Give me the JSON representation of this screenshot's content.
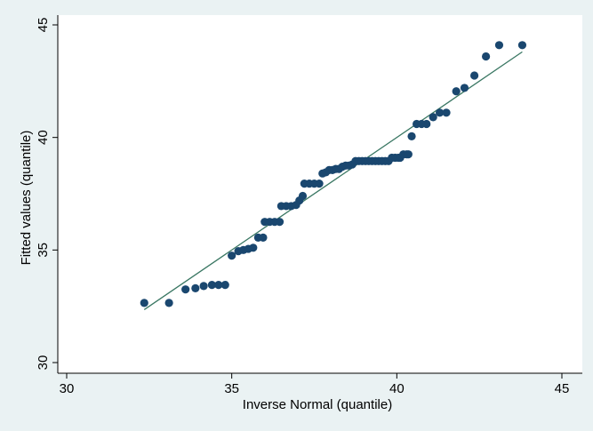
{
  "chart_data": {
    "type": "scatter",
    "title": "",
    "xlabel": "Inverse Normal (quantile)",
    "ylabel": "Fitted values (quantile)",
    "xlim": [
      30,
      45
    ],
    "ylim": [
      30,
      45
    ],
    "xticks": [
      30,
      35,
      40,
      45
    ],
    "yticks": [
      30,
      35,
      40,
      45
    ],
    "grid": false,
    "legend": "none",
    "colors": {
      "outer_background": "#eaf2f3",
      "plot_background": "#ffffff",
      "marker": "#1a476f",
      "reference_line": "#3a7763",
      "axis": "#000000"
    },
    "series": [
      {
        "type": "scatter",
        "points": [
          [
            32.35,
            32.65
          ],
          [
            33.1,
            32.65
          ],
          [
            33.6,
            33.25
          ],
          [
            33.9,
            33.3
          ],
          [
            34.15,
            33.4
          ],
          [
            34.4,
            33.45
          ],
          [
            34.6,
            33.45
          ],
          [
            34.8,
            33.45
          ],
          [
            35.0,
            34.75
          ],
          [
            35.2,
            34.95
          ],
          [
            35.35,
            35.0
          ],
          [
            35.5,
            35.05
          ],
          [
            35.65,
            35.1
          ],
          [
            35.8,
            35.55
          ],
          [
            35.95,
            35.55
          ],
          [
            36.0,
            36.25
          ],
          [
            36.15,
            36.25
          ],
          [
            36.3,
            36.25
          ],
          [
            36.45,
            36.25
          ],
          [
            36.5,
            36.95
          ],
          [
            36.65,
            36.95
          ],
          [
            36.8,
            36.95
          ],
          [
            36.95,
            37.0
          ],
          [
            37.05,
            37.2
          ],
          [
            37.15,
            37.4
          ],
          [
            37.2,
            37.95
          ],
          [
            37.35,
            37.95
          ],
          [
            37.5,
            37.95
          ],
          [
            37.65,
            37.95
          ],
          [
            37.75,
            38.4
          ],
          [
            37.85,
            38.45
          ],
          [
            37.95,
            38.55
          ],
          [
            38.05,
            38.55
          ],
          [
            38.15,
            38.6
          ],
          [
            38.25,
            38.6
          ],
          [
            38.35,
            38.7
          ],
          [
            38.45,
            38.75
          ],
          [
            38.55,
            38.75
          ],
          [
            38.65,
            38.8
          ],
          [
            38.75,
            38.95
          ],
          [
            38.85,
            38.95
          ],
          [
            38.95,
            38.95
          ],
          [
            39.05,
            38.95
          ],
          [
            39.15,
            38.95
          ],
          [
            39.25,
            38.95
          ],
          [
            39.35,
            38.95
          ],
          [
            39.45,
            38.95
          ],
          [
            39.55,
            38.95
          ],
          [
            39.65,
            38.95
          ],
          [
            39.75,
            38.95
          ],
          [
            39.85,
            39.1
          ],
          [
            39.95,
            39.1
          ],
          [
            40.05,
            39.1
          ],
          [
            40.1,
            39.1
          ],
          [
            40.2,
            39.25
          ],
          [
            40.3,
            39.25
          ],
          [
            40.35,
            39.25
          ],
          [
            40.45,
            40.05
          ],
          [
            40.6,
            40.6
          ],
          [
            40.75,
            40.6
          ],
          [
            40.9,
            40.6
          ],
          [
            41.1,
            40.9
          ],
          [
            41.3,
            41.1
          ],
          [
            41.5,
            41.1
          ],
          [
            41.8,
            42.05
          ],
          [
            42.05,
            42.2
          ],
          [
            42.35,
            42.75
          ],
          [
            42.7,
            43.6
          ],
          [
            43.1,
            44.1
          ],
          [
            43.8,
            44.1
          ]
        ]
      },
      {
        "type": "line",
        "points": [
          [
            32.35,
            32.35
          ],
          [
            43.8,
            43.8
          ]
        ]
      }
    ]
  }
}
